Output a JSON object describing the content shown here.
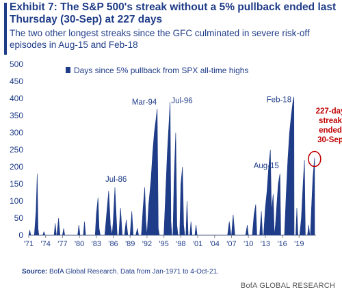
{
  "header": {
    "title": "Exhibit 7: The S&P 500's streak without a 5% pullback ended last Thursday (30-Sep) at 227 days",
    "subtitle": "The two other longest streaks since the GFC culminated in severe risk-off episodes in Aug-15 and Feb-18"
  },
  "footer": {
    "source_label": "Source:",
    "source_text": "BofA Global Research. Data from Jan-1971 to 4-Oct-21.",
    "brand": "BofA GLOBAL RESEARCH"
  },
  "colors": {
    "bar": "#1f3c88",
    "annotation": "#c00000",
    "text": "#1f3c88"
  },
  "chart_data": {
    "type": "bar",
    "legend": "Days since 5% pullback from SPX all-time highs",
    "legend_position": "top-left",
    "ylim": [
      0,
      500
    ],
    "yticks": [
      0,
      50,
      100,
      150,
      200,
      250,
      300,
      350,
      400,
      450,
      500
    ],
    "xlim": [
      1971,
      2022
    ],
    "xticks": [
      "'71",
      "'74",
      "'77",
      "'80",
      "'83",
      "'86",
      "'89",
      "'92",
      "'95",
      "'98",
      "'01",
      "'04",
      "'07",
      "'10",
      "'13",
      "'16",
      "'19"
    ],
    "xtick_years": [
      1971,
      1974,
      1977,
      1980,
      1983,
      1986,
      1989,
      1992,
      1995,
      1998,
      2001,
      2004,
      2007,
      2010,
      2013,
      2016,
      2019
    ],
    "grid": false,
    "peaks": [
      [
        1971.0,
        0
      ],
      [
        1971.2,
        15
      ],
      [
        1971.35,
        0
      ],
      [
        1972.0,
        0
      ],
      [
        1972.3,
        70
      ],
      [
        1972.5,
        180
      ],
      [
        1972.65,
        20
      ],
      [
        1972.8,
        0
      ],
      [
        1973.5,
        0
      ],
      [
        1973.7,
        10
      ],
      [
        1973.9,
        0
      ],
      [
        1975.5,
        0
      ],
      [
        1975.7,
        35
      ],
      [
        1975.9,
        0
      ],
      [
        1976.0,
        0
      ],
      [
        1976.3,
        50
      ],
      [
        1976.55,
        0
      ],
      [
        1977.0,
        0
      ],
      [
        1977.2,
        20
      ],
      [
        1977.4,
        0
      ],
      [
        1979.7,
        0
      ],
      [
        1979.9,
        30
      ],
      [
        1980.1,
        0
      ],
      [
        1980.7,
        0
      ],
      [
        1980.9,
        40
      ],
      [
        1981.1,
        0
      ],
      [
        1982.8,
        0
      ],
      [
        1983.0,
        60
      ],
      [
        1983.3,
        110
      ],
      [
        1983.5,
        20
      ],
      [
        1983.7,
        0
      ],
      [
        1984.5,
        0
      ],
      [
        1984.8,
        55
      ],
      [
        1985.2,
        130
      ],
      [
        1985.5,
        30
      ],
      [
        1985.8,
        0
      ],
      [
        1986.0,
        40
      ],
      [
        1986.3,
        140
      ],
      [
        1986.55,
        50
      ],
      [
        1986.7,
        0
      ],
      [
        1987.0,
        0
      ],
      [
        1987.3,
        80
      ],
      [
        1987.6,
        0
      ],
      [
        1988.0,
        0
      ],
      [
        1988.3,
        45
      ],
      [
        1988.6,
        0
      ],
      [
        1989.0,
        0
      ],
      [
        1989.3,
        70
      ],
      [
        1989.55,
        0
      ],
      [
        1990.0,
        0
      ],
      [
        1990.3,
        20
      ],
      [
        1990.5,
        0
      ],
      [
        1991.0,
        0
      ],
      [
        1991.3,
        80
      ],
      [
        1991.6,
        140
      ],
      [
        1991.8,
        40
      ],
      [
        1992.0,
        0
      ],
      [
        1992.3,
        90
      ],
      [
        1992.7,
        160
      ],
      [
        1993.0,
        240
      ],
      [
        1993.3,
        300
      ],
      [
        1993.6,
        340
      ],
      [
        1993.8,
        370
      ],
      [
        1994.0,
        20
      ],
      [
        1994.2,
        0
      ],
      [
        1995.0,
        0
      ],
      [
        1995.3,
        120
      ],
      [
        1995.6,
        240
      ],
      [
        1995.9,
        330
      ],
      [
        1996.1,
        390
      ],
      [
        1996.25,
        40
      ],
      [
        1996.4,
        0
      ],
      [
        1996.6,
        0
      ],
      [
        1996.8,
        160
      ],
      [
        1997.1,
        300
      ],
      [
        1997.3,
        30
      ],
      [
        1997.5,
        0
      ],
      [
        1997.8,
        0
      ],
      [
        1998.0,
        150
      ],
      [
        1998.3,
        200
      ],
      [
        1998.5,
        30
      ],
      [
        1998.7,
        0
      ],
      [
        1998.9,
        0
      ],
      [
        1999.1,
        100
      ],
      [
        1999.3,
        0
      ],
      [
        1999.6,
        0
      ],
      [
        1999.8,
        40
      ],
      [
        2000.0,
        0
      ],
      [
        2000.5,
        0
      ],
      [
        2000.7,
        30
      ],
      [
        2000.9,
        0
      ],
      [
        2006.3,
        0
      ],
      [
        2006.6,
        40
      ],
      [
        2006.9,
        0
      ],
      [
        2007.0,
        0
      ],
      [
        2007.3,
        60
      ],
      [
        2007.6,
        0
      ],
      [
        2009.5,
        0
      ],
      [
        2009.8,
        30
      ],
      [
        2010.0,
        0
      ],
      [
        2010.7,
        0
      ],
      [
        2011.0,
        60
      ],
      [
        2011.3,
        90
      ],
      [
        2011.5,
        0
      ],
      [
        2012.0,
        0
      ],
      [
        2012.3,
        70
      ],
      [
        2012.5,
        0
      ],
      [
        2012.7,
        0
      ],
      [
        2013.0,
        80
      ],
      [
        2013.3,
        130
      ],
      [
        2013.6,
        200
      ],
      [
        2013.9,
        250
      ],
      [
        2014.1,
        70
      ],
      [
        2014.4,
        120
      ],
      [
        2014.6,
        0
      ],
      [
        2014.8,
        30
      ],
      [
        2015.0,
        80
      ],
      [
        2015.3,
        150
      ],
      [
        2015.6,
        180
      ],
      [
        2015.75,
        0
      ],
      [
        2016.4,
        0
      ],
      [
        2016.7,
        120
      ],
      [
        2017.0,
        220
      ],
      [
        2017.3,
        300
      ],
      [
        2017.6,
        350
      ],
      [
        2017.9,
        390
      ],
      [
        2018.08,
        405
      ],
      [
        2018.12,
        0
      ],
      [
        2018.4,
        0
      ],
      [
        2018.6,
        80
      ],
      [
        2018.8,
        0
      ],
      [
        2019.1,
        0
      ],
      [
        2019.4,
        50
      ],
      [
        2019.7,
        150
      ],
      [
        2019.95,
        220
      ],
      [
        2020.1,
        0
      ],
      [
        2020.5,
        0
      ],
      [
        2020.7,
        30
      ],
      [
        2020.9,
        0
      ],
      [
        2021.0,
        0
      ],
      [
        2021.2,
        80
      ],
      [
        2021.45,
        170
      ],
      [
        2021.74,
        227
      ],
      [
        2021.76,
        0
      ]
    ],
    "annotations": [
      {
        "label": "Jul-86",
        "x": 1986.5,
        "y": 140
      },
      {
        "label": "Mar-94",
        "x": 1994.2,
        "y": 370
      },
      {
        "label": "Jul-96",
        "x": 1996.5,
        "y": 390
      },
      {
        "label": "Aug-15",
        "x": 2015.6,
        "y": 180
      },
      {
        "label": "Feb-18",
        "x": 2018.1,
        "y": 405
      }
    ],
    "end_note": {
      "lines": [
        "227-day",
        "streak",
        "ended",
        "30-Sep"
      ],
      "x": 2021.74,
      "y": 227
    }
  }
}
